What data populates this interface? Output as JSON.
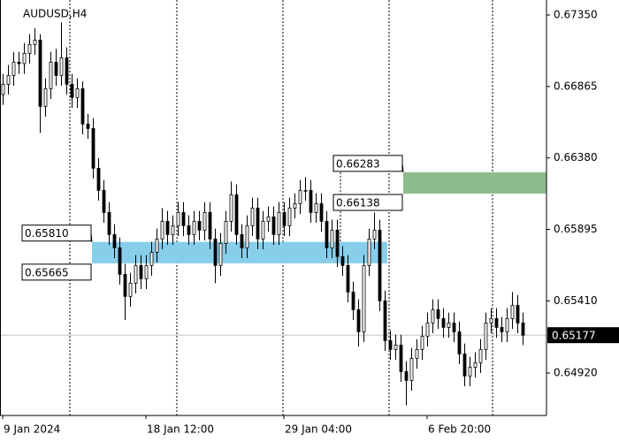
{
  "chart_data": {
    "type": "candlestick",
    "title": "AUDUSD,H4",
    "open": [
      0.6681,
      0.6688,
      0.6694,
      0.6703,
      0.6702,
      0.6709,
      0.6715,
      0.6718,
      0.6673,
      0.6685,
      0.6703,
      0.6694,
      0.6706,
      0.6688,
      0.6679,
      0.6685,
      0.6661,
      0.6658,
      0.6631,
      0.6616,
      0.6601,
      0.6586,
      0.6577,
      0.6559,
      0.6544,
      0.6553,
      0.6565,
      0.6556,
      0.6565,
      0.6574,
      0.6583,
      0.6595,
      0.6586,
      0.6592,
      0.6601,
      0.6592,
      0.6586,
      0.6595,
      0.6589,
      0.6601,
      0.6583,
      0.6565,
      0.658,
      0.6595,
      0.6613,
      0.6586,
      0.6577,
      0.6592,
      0.6604,
      0.6583,
      0.6595,
      0.6598,
      0.6586,
      0.6601,
      0.6592,
      0.6604,
      0.6607,
      0.6616,
      0.6616,
      0.6601,
      0.6607,
      0.6595,
      0.6577,
      0.6589,
      0.6571,
      0.6565,
      0.6547,
      0.6535,
      0.652,
      0.6565,
      0.6583,
      0.6589,
      0.6541,
      0.6514,
      0.6508,
      0.6511,
      0.6493,
      0.6487,
      0.6502,
      0.6508,
      0.6517,
      0.6526,
      0.6535,
      0.6529,
      0.6523,
      0.6526,
      0.652,
      0.6505,
      0.649,
      0.6496,
      0.6499,
      0.6508,
      0.6526,
      0.6529,
      0.6523,
      0.652,
      0.6529,
      0.6538,
      0.6526
    ],
    "high": [
      0.6695,
      0.6701,
      0.671,
      0.671,
      0.6716,
      0.6722,
      0.6726,
      0.6722,
      0.6692,
      0.671,
      0.6712,
      0.673,
      0.6713,
      0.6695,
      0.6692,
      0.669,
      0.6668,
      0.6665,
      0.6638,
      0.6623,
      0.6608,
      0.6593,
      0.6584,
      0.6566,
      0.656,
      0.6572,
      0.6572,
      0.6572,
      0.6581,
      0.659,
      0.6604,
      0.6602,
      0.6599,
      0.6608,
      0.6608,
      0.6599,
      0.6602,
      0.6602,
      0.6608,
      0.6608,
      0.659,
      0.6587,
      0.6602,
      0.6622,
      0.662,
      0.6593,
      0.6599,
      0.6611,
      0.6611,
      0.6602,
      0.6605,
      0.6605,
      0.6608,
      0.6608,
      0.6611,
      0.6614,
      0.6623,
      0.6625,
      0.6623,
      0.6614,
      0.6614,
      0.6602,
      0.6596,
      0.6596,
      0.6578,
      0.6572,
      0.6554,
      0.6542,
      0.6572,
      0.659,
      0.6601,
      0.6596,
      0.6548,
      0.6521,
      0.6518,
      0.6518,
      0.65,
      0.6509,
      0.6515,
      0.6524,
      0.6533,
      0.6542,
      0.6542,
      0.6536,
      0.6533,
      0.6533,
      0.6527,
      0.6512,
      0.6503,
      0.6506,
      0.6515,
      0.6533,
      0.6536,
      0.6536,
      0.653,
      0.6536,
      0.6547,
      0.6545,
      0.6533
    ],
    "low": [
      0.6674,
      0.6681,
      0.6687,
      0.6695,
      0.6695,
      0.6702,
      0.6708,
      0.6655,
      0.6666,
      0.6678,
      0.6687,
      0.6687,
      0.6681,
      0.6672,
      0.6672,
      0.6654,
      0.6651,
      0.6624,
      0.6609,
      0.6594,
      0.6579,
      0.657,
      0.6552,
      0.6528,
      0.6537,
      0.6546,
      0.6549,
      0.6549,
      0.6558,
      0.6567,
      0.6576,
      0.6579,
      0.6579,
      0.6585,
      0.6585,
      0.6579,
      0.6579,
      0.6582,
      0.6582,
      0.6576,
      0.6553,
      0.6558,
      0.6573,
      0.6588,
      0.6579,
      0.657,
      0.657,
      0.6585,
      0.6576,
      0.6576,
      0.6588,
      0.6579,
      0.6579,
      0.6585,
      0.6585,
      0.6597,
      0.66,
      0.6609,
      0.6594,
      0.6594,
      0.6588,
      0.657,
      0.657,
      0.6564,
      0.6558,
      0.654,
      0.6528,
      0.651,
      0.6513,
      0.6558,
      0.6576,
      0.6534,
      0.6507,
      0.6501,
      0.6501,
      0.6486,
      0.647,
      0.648,
      0.6495,
      0.6501,
      0.651,
      0.6519,
      0.6522,
      0.6516,
      0.6516,
      0.6513,
      0.6498,
      0.6483,
      0.6483,
      0.6489,
      0.6492,
      0.6501,
      0.6519,
      0.6516,
      0.6513,
      0.6513,
      0.6522,
      0.6519,
      0.6511
    ],
    "close": [
      0.6688,
      0.6694,
      0.6703,
      0.6702,
      0.6709,
      0.6715,
      0.6718,
      0.6673,
      0.6685,
      0.6703,
      0.6694,
      0.6706,
      0.6688,
      0.6679,
      0.6685,
      0.6661,
      0.6658,
      0.6631,
      0.6616,
      0.6601,
      0.6586,
      0.6577,
      0.6559,
      0.6544,
      0.6553,
      0.6565,
      0.6556,
      0.6565,
      0.6574,
      0.6583,
      0.6595,
      0.6586,
      0.6592,
      0.6601,
      0.6592,
      0.6586,
      0.6595,
      0.6589,
      0.6601,
      0.6583,
      0.6565,
      0.658,
      0.6595,
      0.6613,
      0.6586,
      0.6577,
      0.6592,
      0.6604,
      0.6583,
      0.6595,
      0.6598,
      0.6586,
      0.6601,
      0.6592,
      0.6604,
      0.6607,
      0.6616,
      0.6616,
      0.6601,
      0.6607,
      0.6595,
      0.6577,
      0.6589,
      0.6571,
      0.6565,
      0.6547,
      0.6535,
      0.652,
      0.6565,
      0.6583,
      0.6589,
      0.6541,
      0.6514,
      0.6508,
      0.6511,
      0.6493,
      0.6487,
      0.6502,
      0.6508,
      0.6517,
      0.6526,
      0.6535,
      0.6529,
      0.6523,
      0.6526,
      0.652,
      0.6505,
      0.649,
      0.6496,
      0.6499,
      0.6508,
      0.6526,
      0.6529,
      0.6523,
      0.652,
      0.6529,
      0.6538,
      0.6526,
      0.65177
    ],
    "color": "#000000",
    "ylim": [
      0.64632,
      0.67452
    ],
    "yticks": [
      {
        "value": 0.6735,
        "label": "0.67350"
      },
      0.66865,
      {
        "value": 0.6638,
        "label": "0.66380"
      },
      0.65895,
      {
        "value": 0.6541,
        "label": "0.65410"
      },
      {
        "value": 0.6492,
        "label": "0.64920"
      }
    ],
    "xticks": [
      {
        "value": 0,
        "label": "9 Jan 2024"
      },
      {
        "value": 27,
        "label": "18 Jan 12:00"
      },
      {
        "value": 53,
        "label": "29 Jan 04:00"
      },
      {
        "value": 80,
        "label": "6 Feb 20:00"
      }
    ],
    "zones": [
      {
        "color": "#87ceeb",
        "values": [
          0.6581,
          0.65665
        ],
        "value_labels": [
          "0.65810",
          "0.65665"
        ]
      },
      {
        "color": "#8fbc8f",
        "values": [
          0.66283,
          0.66138
        ],
        "value_labels": [
          "0.66283",
          "0.66138"
        ]
      }
    ],
    "last_price": 0.65177
  }
}
